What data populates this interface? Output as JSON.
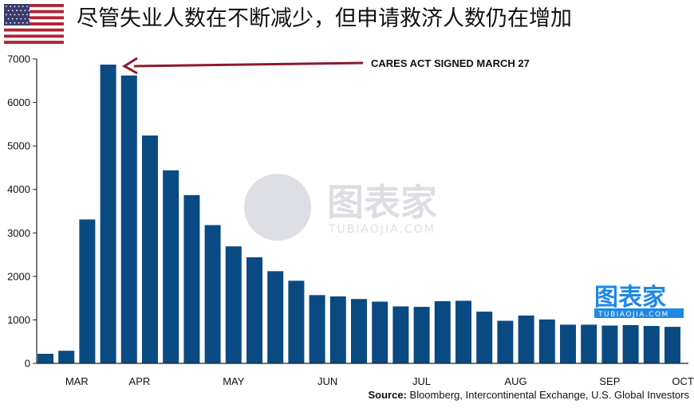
{
  "title": "尽管失业人数在不断减少，但申请救济人数仍在增加",
  "flag_icon": "us-flag-icon",
  "source": {
    "label": "Source:",
    "text": " Bloomberg, Intercontinental Exchange, U.S. Global Investors"
  },
  "watermark": {
    "center_text": "图表家",
    "center_sub": "TUBIAOJIA.COM",
    "corner_text": "图表家",
    "corner_sub": "TUBIAOJIA.COM"
  },
  "colors": {
    "bar": "#0a4a83",
    "arrow": "#8b1a2e",
    "axis": "#222222",
    "flag_red": "#b22234",
    "flag_blue": "#3c3b6e",
    "watermark_blue": "#1e88e5"
  },
  "chart_data": {
    "type": "bar",
    "title": "尽管失业人数在不断减少，但申请救济人数仍在增加",
    "xlabel": "",
    "ylabel": "",
    "ylim": [
      0,
      7000
    ],
    "yticks": [
      0,
      1000,
      2000,
      3000,
      4000,
      5000,
      6000,
      7000
    ],
    "month_labels": [
      {
        "label": "MAR",
        "bar_index": 1.5
      },
      {
        "label": "APR",
        "bar_index": 4.5
      },
      {
        "label": "MAY",
        "bar_index": 9.0
      },
      {
        "label": "JUN",
        "bar_index": 13.5
      },
      {
        "label": "JUL",
        "bar_index": 18.0
      },
      {
        "label": "AUG",
        "bar_index": 22.5
      },
      {
        "label": "SEP",
        "bar_index": 27.0
      },
      {
        "label": "OCT",
        "bar_index": 30.5
      }
    ],
    "values": [
      220,
      290,
      3310,
      6870,
      6620,
      5240,
      4440,
      3870,
      3180,
      2690,
      2440,
      2120,
      1900,
      1570,
      1540,
      1480,
      1420,
      1310,
      1300,
      1430,
      1440,
      1190,
      980,
      1100,
      1010,
      890,
      890,
      870,
      880,
      860,
      840
    ],
    "annotation": {
      "text": "CARES ACT SIGNED MARCH 27",
      "target_bar_index": 3
    },
    "grid": false,
    "legend": "none"
  }
}
